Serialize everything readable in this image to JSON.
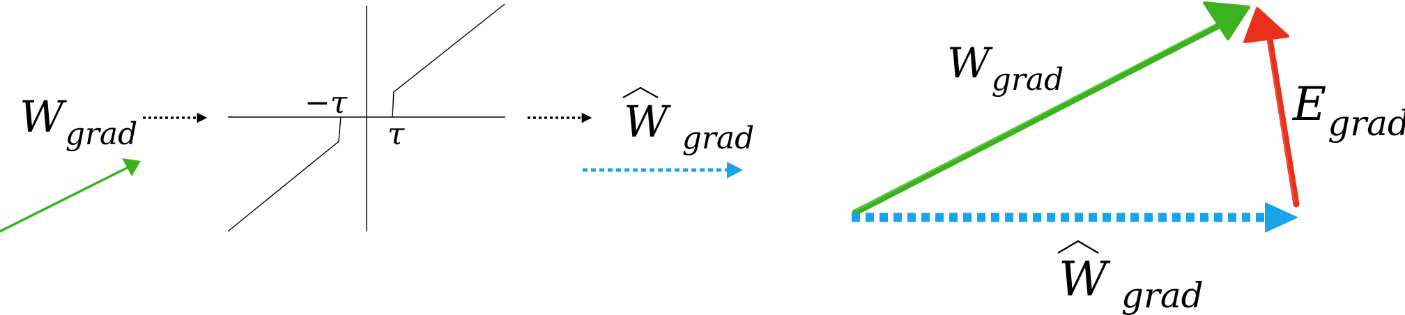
{
  "left_panel": {
    "input_label": {
      "base": "W",
      "sub": "grad"
    },
    "threshold_labels": {
      "neg": "−τ",
      "pos": "τ"
    },
    "output_label": {
      "base": "W",
      "sub": "grad",
      "accent": "hat"
    }
  },
  "right_panel": {
    "w_grad_label": {
      "base": "W",
      "sub": "grad"
    },
    "e_grad_label": {
      "base": "E",
      "sub": "grad"
    },
    "w_hat_label": {
      "base": "W",
      "sub": "grad",
      "accent": "hat"
    }
  },
  "colors": {
    "green": "#3cb21e",
    "red": "#e8301c",
    "blue": "#1aa3e8",
    "black": "#000000"
  }
}
